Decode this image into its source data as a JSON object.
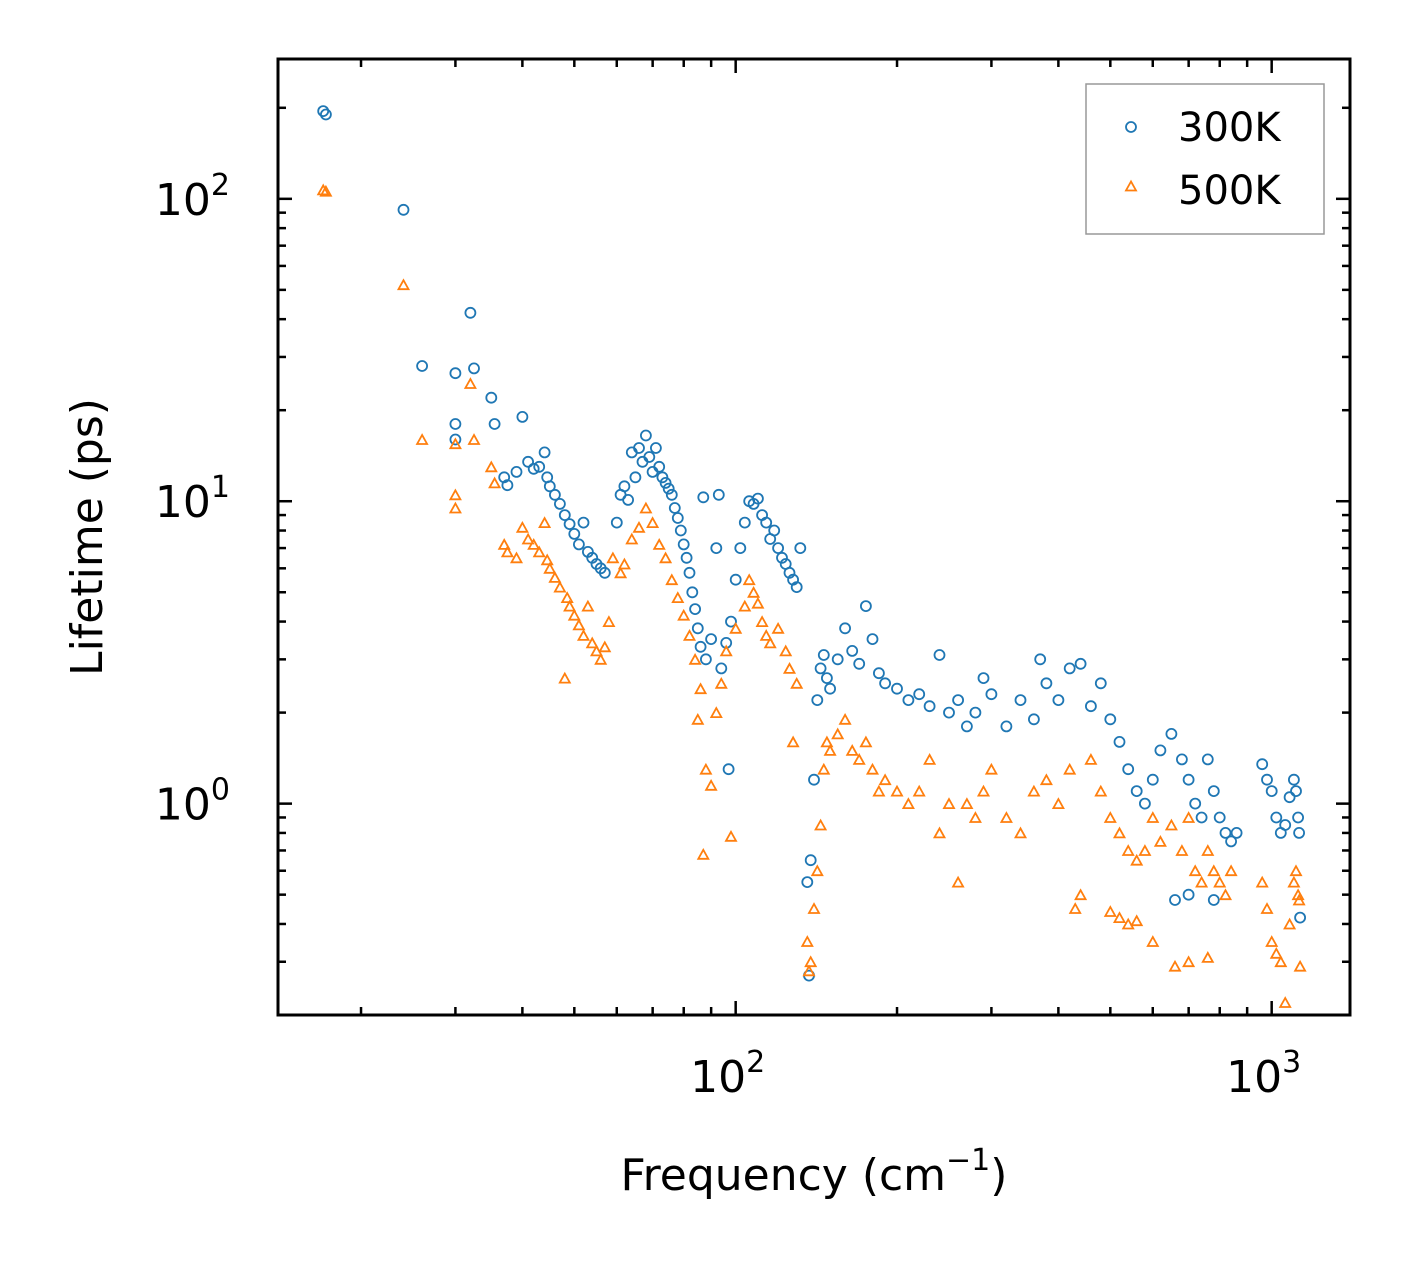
{
  "chart_data": {
    "type": "scatter",
    "xscale": "log",
    "yscale": "log",
    "xlim": [
      14,
      1400
    ],
    "ylim": [
      0.2,
      290
    ],
    "xlabel_main": "Frequency (cm",
    "xlabel_sup": "−1",
    "xlabel_end": ")",
    "ylabel": "Lifetime (ps)",
    "x_ticks": [
      {
        "value": 100,
        "base": "10",
        "exp": "2"
      },
      {
        "value": 1000,
        "base": "10",
        "exp": "3"
      }
    ],
    "y_ticks": [
      {
        "value": 1,
        "base": "10",
        "exp": "0"
      },
      {
        "value": 10,
        "base": "10",
        "exp": "1"
      },
      {
        "value": 100,
        "base": "10",
        "exp": "2"
      }
    ],
    "legend_position": "top-right",
    "series": [
      {
        "name": "300K",
        "marker": "circle",
        "color": "#1f77b4",
        "points": [
          [
            17.0,
            195
          ],
          [
            17.2,
            190
          ],
          [
            24,
            92
          ],
          [
            26,
            28
          ],
          [
            30,
            26.5
          ],
          [
            32,
            42
          ],
          [
            32.5,
            27.5
          ],
          [
            30,
            18
          ],
          [
            30,
            16
          ],
          [
            35,
            22
          ],
          [
            35.5,
            18
          ],
          [
            37,
            12
          ],
          [
            37.5,
            11.3
          ],
          [
            39,
            12.5
          ],
          [
            40,
            19
          ],
          [
            41,
            13.5
          ],
          [
            42,
            12.8
          ],
          [
            43,
            13.0
          ],
          [
            44,
            14.5
          ],
          [
            44.5,
            12.0
          ],
          [
            45,
            11.2
          ],
          [
            46,
            10.5
          ],
          [
            47,
            9.8
          ],
          [
            48,
            9.0
          ],
          [
            49,
            8.4
          ],
          [
            50,
            7.8
          ],
          [
            51,
            7.2
          ],
          [
            52,
            8.5
          ],
          [
            53,
            6.8
          ],
          [
            54,
            6.5
          ],
          [
            55,
            6.2
          ],
          [
            56,
            6.0
          ],
          [
            57,
            5.8
          ],
          [
            60,
            8.5
          ],
          [
            61,
            10.5
          ],
          [
            62,
            11.2
          ],
          [
            63,
            10.1
          ],
          [
            64,
            14.5
          ],
          [
            65,
            12.0
          ],
          [
            66,
            15.0
          ],
          [
            67,
            13.5
          ],
          [
            68,
            16.5
          ],
          [
            69,
            14.0
          ],
          [
            70,
            12.5
          ],
          [
            71,
            15.0
          ],
          [
            72,
            13.0
          ],
          [
            73,
            12.0
          ],
          [
            74,
            11.5
          ],
          [
            75,
            11.0
          ],
          [
            76,
            10.5
          ],
          [
            77,
            9.5
          ],
          [
            78,
            8.8
          ],
          [
            79,
            8.0
          ],
          [
            80,
            7.2
          ],
          [
            81,
            6.5
          ],
          [
            82,
            5.8
          ],
          [
            83,
            5.0
          ],
          [
            84,
            4.4
          ],
          [
            85,
            3.8
          ],
          [
            86,
            3.3
          ],
          [
            87,
            10.3
          ],
          [
            88,
            3.0
          ],
          [
            90,
            3.5
          ],
          [
            92,
            7.0
          ],
          [
            93,
            10.5
          ],
          [
            94,
            2.8
          ],
          [
            96,
            3.4
          ],
          [
            97,
            1.3
          ],
          [
            98,
            4.0
          ],
          [
            100,
            5.5
          ],
          [
            102,
            7.0
          ],
          [
            104,
            8.5
          ],
          [
            106,
            10.0
          ],
          [
            108,
            9.8
          ],
          [
            110,
            10.2
          ],
          [
            112,
            9.0
          ],
          [
            114,
            8.5
          ],
          [
            116,
            7.5
          ],
          [
            118,
            8.0
          ],
          [
            120,
            7.0
          ],
          [
            122,
            6.5
          ],
          [
            124,
            6.2
          ],
          [
            126,
            5.8
          ],
          [
            128,
            5.5
          ],
          [
            130,
            5.2
          ],
          [
            132,
            7.0
          ],
          [
            136,
            0.55
          ],
          [
            137,
            0.27
          ],
          [
            138,
            0.65
          ],
          [
            140,
            1.2
          ],
          [
            142,
            2.2
          ],
          [
            144,
            2.8
          ],
          [
            146,
            3.1
          ],
          [
            148,
            2.6
          ],
          [
            150,
            2.4
          ],
          [
            155,
            3.0
          ],
          [
            160,
            3.8
          ],
          [
            165,
            3.2
          ],
          [
            170,
            2.9
          ],
          [
            175,
            4.5
          ],
          [
            180,
            3.5
          ],
          [
            185,
            2.7
          ],
          [
            190,
            2.5
          ],
          [
            200,
            2.4
          ],
          [
            210,
            2.2
          ],
          [
            220,
            2.3
          ],
          [
            230,
            2.1
          ],
          [
            240,
            3.1
          ],
          [
            250,
            2.0
          ],
          [
            260,
            2.2
          ],
          [
            270,
            1.8
          ],
          [
            280,
            2.0
          ],
          [
            290,
            2.6
          ],
          [
            300,
            2.3
          ],
          [
            320,
            1.8
          ],
          [
            340,
            2.2
          ],
          [
            360,
            1.9
          ],
          [
            370,
            3.0
          ],
          [
            380,
            2.5
          ],
          [
            400,
            2.2
          ],
          [
            420,
            2.8
          ],
          [
            440,
            2.9
          ],
          [
            460,
            2.1
          ],
          [
            480,
            2.5
          ],
          [
            500,
            1.9
          ],
          [
            520,
            1.6
          ],
          [
            540,
            1.3
          ],
          [
            560,
            1.1
          ],
          [
            580,
            1.0
          ],
          [
            600,
            1.2
          ],
          [
            620,
            1.5
          ],
          [
            650,
            1.7
          ],
          [
            680,
            1.4
          ],
          [
            700,
            1.2
          ],
          [
            720,
            1.0
          ],
          [
            740,
            0.9
          ],
          [
            760,
            1.4
          ],
          [
            780,
            1.1
          ],
          [
            800,
            0.9
          ],
          [
            820,
            0.8
          ],
          [
            840,
            0.75
          ],
          [
            860,
            0.8
          ],
          [
            660,
            0.48
          ],
          [
            700,
            0.5
          ],
          [
            780,
            0.48
          ],
          [
            960,
            1.35
          ],
          [
            980,
            1.2
          ],
          [
            1000,
            1.1
          ],
          [
            1020,
            0.9
          ],
          [
            1040,
            0.8
          ],
          [
            1060,
            0.85
          ],
          [
            1080,
            1.05
          ],
          [
            1100,
            1.2
          ],
          [
            1110,
            1.1
          ],
          [
            1120,
            0.9
          ],
          [
            1125,
            0.8
          ],
          [
            1130,
            0.42
          ]
        ]
      },
      {
        "name": "500K",
        "marker": "triangle",
        "color": "#ff7f0e",
        "points": [
          [
            17.0,
            107
          ],
          [
            17.2,
            106
          ],
          [
            24,
            52
          ],
          [
            26,
            16
          ],
          [
            30,
            15.5
          ],
          [
            30,
            10.5
          ],
          [
            30,
            9.5
          ],
          [
            32,
            24.5
          ],
          [
            32.5,
            16
          ],
          [
            35,
            13
          ],
          [
            35.5,
            11.5
          ],
          [
            37,
            7.2
          ],
          [
            37.5,
            6.8
          ],
          [
            39,
            6.5
          ],
          [
            40,
            8.2
          ],
          [
            41,
            7.5
          ],
          [
            42,
            7.2
          ],
          [
            43,
            6.8
          ],
          [
            44,
            8.5
          ],
          [
            44.5,
            6.4
          ],
          [
            45,
            6.0
          ],
          [
            46,
            5.6
          ],
          [
            47,
            5.2
          ],
          [
            48,
            2.6
          ],
          [
            48.5,
            4.8
          ],
          [
            49,
            4.5
          ],
          [
            50,
            4.2
          ],
          [
            51,
            3.9
          ],
          [
            52,
            3.6
          ],
          [
            53,
            4.5
          ],
          [
            54,
            3.4
          ],
          [
            55,
            3.2
          ],
          [
            56,
            3.0
          ],
          [
            57,
            3.3
          ],
          [
            58,
            4.0
          ],
          [
            59,
            6.5
          ],
          [
            61,
            5.8
          ],
          [
            62,
            6.2
          ],
          [
            64,
            7.5
          ],
          [
            66,
            8.2
          ],
          [
            68,
            9.5
          ],
          [
            70,
            8.5
          ],
          [
            72,
            7.2
          ],
          [
            74,
            6.5
          ],
          [
            76,
            5.5
          ],
          [
            78,
            4.8
          ],
          [
            80,
            4.2
          ],
          [
            82,
            3.6
          ],
          [
            84,
            3.0
          ],
          [
            85,
            1.9
          ],
          [
            86,
            2.4
          ],
          [
            87,
            0.68
          ],
          [
            88,
            1.3
          ],
          [
            90,
            1.15
          ],
          [
            92,
            2.0
          ],
          [
            94,
            2.5
          ],
          [
            96,
            3.2
          ],
          [
            98,
            0.78
          ],
          [
            100,
            3.8
          ],
          [
            104,
            4.5
          ],
          [
            106,
            5.5
          ],
          [
            108,
            5.0
          ],
          [
            110,
            4.6
          ],
          [
            112,
            4.0
          ],
          [
            114,
            3.6
          ],
          [
            116,
            3.4
          ],
          [
            120,
            3.8
          ],
          [
            124,
            3.2
          ],
          [
            126,
            2.8
          ],
          [
            128,
            1.6
          ],
          [
            130,
            2.5
          ],
          [
            136,
            0.35
          ],
          [
            137,
            0.28
          ],
          [
            138,
            0.3
          ],
          [
            140,
            0.45
          ],
          [
            142,
            0.6
          ],
          [
            144,
            0.85
          ],
          [
            146,
            1.3
          ],
          [
            148,
            1.6
          ],
          [
            150,
            1.5
          ],
          [
            155,
            1.7
          ],
          [
            160,
            1.9
          ],
          [
            165,
            1.5
          ],
          [
            170,
            1.4
          ],
          [
            175,
            1.6
          ],
          [
            180,
            1.3
          ],
          [
            185,
            1.1
          ],
          [
            190,
            1.2
          ],
          [
            200,
            1.1
          ],
          [
            210,
            1.0
          ],
          [
            220,
            1.1
          ],
          [
            230,
            1.4
          ],
          [
            240,
            0.8
          ],
          [
            250,
            1.0
          ],
          [
            260,
            0.55
          ],
          [
            270,
            1.0
          ],
          [
            280,
            0.9
          ],
          [
            290,
            1.1
          ],
          [
            300,
            1.3
          ],
          [
            320,
            0.9
          ],
          [
            340,
            0.8
          ],
          [
            360,
            1.1
          ],
          [
            380,
            1.2
          ],
          [
            400,
            1.0
          ],
          [
            420,
            1.3
          ],
          [
            430,
            0.45
          ],
          [
            440,
            0.5
          ],
          [
            460,
            1.4
          ],
          [
            480,
            1.1
          ],
          [
            500,
            0.9
          ],
          [
            520,
            0.8
          ],
          [
            540,
            0.7
          ],
          [
            560,
            0.65
          ],
          [
            580,
            0.7
          ],
          [
            600,
            0.9
          ],
          [
            620,
            0.75
          ],
          [
            650,
            0.85
          ],
          [
            680,
            0.7
          ],
          [
            700,
            0.9
          ],
          [
            720,
            0.6
          ],
          [
            740,
            0.55
          ],
          [
            760,
            0.7
          ],
          [
            780,
            0.6
          ],
          [
            800,
            0.55
          ],
          [
            820,
            0.5
          ],
          [
            840,
            0.6
          ],
          [
            500,
            0.44
          ],
          [
            520,
            0.42
          ],
          [
            540,
            0.4
          ],
          [
            560,
            0.41
          ],
          [
            600,
            0.35
          ],
          [
            660,
            0.29
          ],
          [
            700,
            0.3
          ],
          [
            760,
            0.31
          ],
          [
            960,
            0.55
          ],
          [
            980,
            0.45
          ],
          [
            1000,
            0.35
          ],
          [
            1020,
            0.32
          ],
          [
            1040,
            0.3
          ],
          [
            1060,
            0.22
          ],
          [
            1080,
            0.4
          ],
          [
            1100,
            0.55
          ],
          [
            1110,
            0.6
          ],
          [
            1120,
            0.5
          ],
          [
            1125,
            0.48
          ],
          [
            1130,
            0.29
          ]
        ]
      }
    ]
  }
}
